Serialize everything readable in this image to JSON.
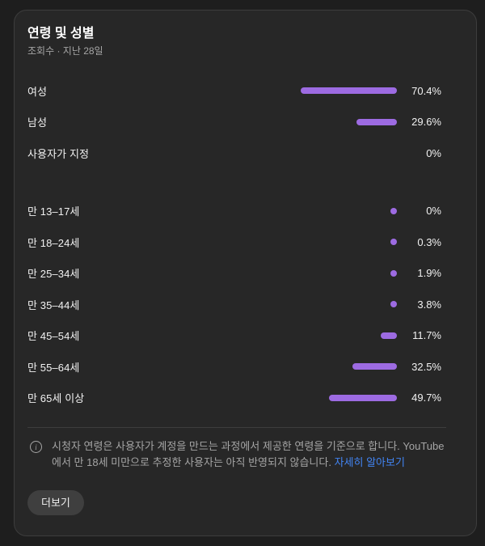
{
  "theme": {
    "accent_color": "#9d6be2",
    "link_color": "#4285f4",
    "card_background": "#272727",
    "page_background": "#1e1e1e"
  },
  "card": {
    "title": "연령 및 성별",
    "subtitle": "조회수 · 지난 28일"
  },
  "chart_data": {
    "type": "bar",
    "orientation": "horizontal",
    "value_range": [
      0,
      100
    ],
    "bar_color": "#9d6be2",
    "groups": [
      {
        "name": "gender",
        "rows": [
          {
            "label": "여성",
            "value": 70.4,
            "display": "70.4%",
            "bar": true
          },
          {
            "label": "남성",
            "value": 29.6,
            "display": "29.6%",
            "bar": true
          },
          {
            "label": "사용자가 지정",
            "value": 0,
            "display": "0%",
            "bar": false
          }
        ]
      },
      {
        "name": "age",
        "rows": [
          {
            "label": "만 13–17세",
            "value": 0,
            "display": "0%",
            "bar": true
          },
          {
            "label": "만 18–24세",
            "value": 0.3,
            "display": "0.3%",
            "bar": true
          },
          {
            "label": "만 25–34세",
            "value": 1.9,
            "display": "1.9%",
            "bar": true
          },
          {
            "label": "만 35–44세",
            "value": 3.8,
            "display": "3.8%",
            "bar": true
          },
          {
            "label": "만 45–54세",
            "value": 11.7,
            "display": "11.7%",
            "bar": true
          },
          {
            "label": "만 55–64세",
            "value": 32.5,
            "display": "32.5%",
            "bar": true
          },
          {
            "label": "만 65세 이상",
            "value": 49.7,
            "display": "49.7%",
            "bar": true
          }
        ]
      }
    ]
  },
  "footer": {
    "icon": "info-icon",
    "info_text": "시청자 연령은 사용자가 계정을 만드는 과정에서 제공한 연령을 기준으로 합니다. YouTube에서 만 18세 미만으로 추정한 사용자는 아직 반영되지 않습니다.",
    "link_label": "자세히 알아보기",
    "more_button_label": "더보기"
  }
}
